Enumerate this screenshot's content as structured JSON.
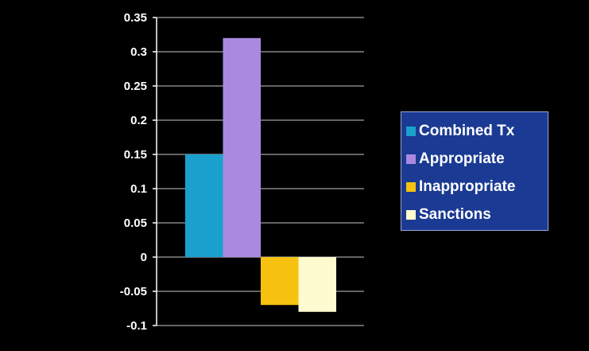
{
  "colors": {
    "background": "#000000",
    "plot_background": "#000000",
    "gridline": "#c8c8c8",
    "tick_text": "#ffffff",
    "legend_background": "#1b3a93",
    "legend_text": "#ffffff"
  },
  "chart_data": {
    "type": "bar",
    "title": "",
    "xlabel": "",
    "ylabel": "",
    "categories": [
      ""
    ],
    "ylim": [
      -0.1,
      0.35
    ],
    "yticks": [
      0.35,
      0.3,
      0.25,
      0.2,
      0.15,
      0.1,
      0.05,
      0,
      -0.05,
      -0.1
    ],
    "ytick_labels": [
      "0.35",
      "0.3",
      "0.25",
      "0.2",
      "0.15",
      "0.1",
      "0.05",
      "0",
      "-0.05",
      "-0.1"
    ],
    "grid": true,
    "legend_position": "right",
    "series": [
      {
        "name": "Combined Tx",
        "values": [
          0.15
        ],
        "color": "#1aa0cc"
      },
      {
        "name": "Appropriate",
        "values": [
          0.32
        ],
        "color": "#a98ae0"
      },
      {
        "name": "Inappropriate",
        "values": [
          -0.07
        ],
        "color": "#f7c20f"
      },
      {
        "name": "Sanctions",
        "values": [
          -0.08
        ],
        "color": "#fffbd0"
      }
    ]
  }
}
